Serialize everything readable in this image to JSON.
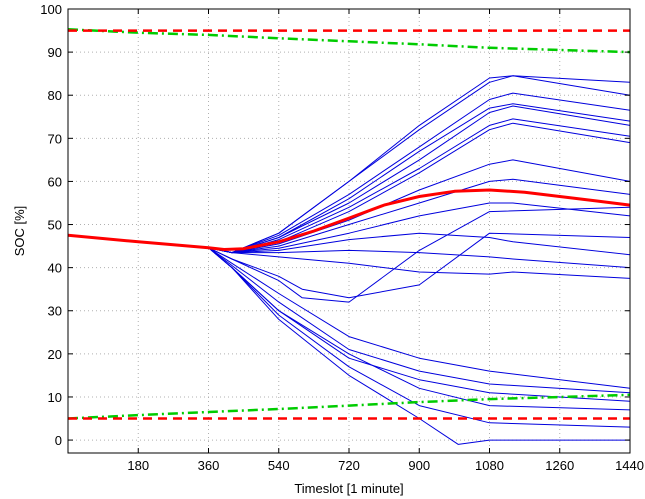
{
  "chart_data": {
    "type": "line",
    "title": "",
    "xlabel": "Timeslot [1 minute]",
    "ylabel": "SOC [%]",
    "xlim": [
      0,
      1440
    ],
    "ylim": [
      -3,
      100
    ],
    "xticks": [
      180,
      360,
      540,
      720,
      900,
      1080,
      1260,
      1440
    ],
    "yticks": [
      0,
      10,
      20,
      30,
      40,
      50,
      60,
      70,
      80,
      90,
      100
    ],
    "grid": true,
    "legend": "none",
    "colors": {
      "mean": "#ff0000",
      "limits": "#ff0000",
      "bounds": "#00cc00",
      "trajectories": "#0000dd"
    },
    "series": [
      {
        "role": "upper-limit",
        "style": "dashed",
        "x": [
          0,
          1440
        ],
        "y": [
          95,
          95
        ]
      },
      {
        "role": "lower-limit",
        "style": "dashed",
        "x": [
          0,
          1440
        ],
        "y": [
          5,
          5
        ]
      },
      {
        "role": "upper-bound",
        "style": "dash-dot",
        "x": [
          0,
          180,
          360,
          540,
          720,
          900,
          1080,
          1260,
          1440
        ],
        "y": [
          95.3,
          94.5,
          94,
          93.2,
          92.5,
          91.8,
          91.0,
          90.5,
          90.0
        ]
      },
      {
        "role": "lower-bound",
        "style": "dash-dot",
        "x": [
          0,
          180,
          360,
          540,
          720,
          900,
          1080,
          1260,
          1440
        ],
        "y": [
          5.0,
          5.8,
          6.5,
          7.2,
          8.0,
          8.8,
          9.5,
          10.0,
          10.5
        ]
      },
      {
        "role": "mean",
        "style": "solid-thick",
        "x": [
          0,
          180,
          360,
          400,
          450,
          540,
          630,
          720,
          810,
          900,
          990,
          1080,
          1170,
          1260,
          1350,
          1440
        ],
        "y": [
          47.5,
          46,
          44.6,
          44.2,
          44.4,
          46,
          48.5,
          51.5,
          54.5,
          56.5,
          57.7,
          58,
          57.5,
          56.5,
          55.5,
          54.5
        ]
      },
      {
        "role": "trajectory",
        "x": [
          0,
          360,
          420,
          540,
          720,
          900,
          1080,
          1140,
          1440
        ],
        "y": [
          47.5,
          44.6,
          43.5,
          48,
          60,
          73,
          84,
          84.5,
          80.0
        ]
      },
      {
        "role": "trajectory",
        "x": [
          0,
          360,
          420,
          540,
          720,
          900,
          1080,
          1140,
          1440
        ],
        "y": [
          47.5,
          44.6,
          43.5,
          48,
          60,
          72,
          83,
          84.5,
          83.0
        ]
      },
      {
        "role": "trajectory",
        "x": [
          0,
          360,
          420,
          540,
          720,
          900,
          1080,
          1140,
          1440
        ],
        "y": [
          47.5,
          44.6,
          43.5,
          47.5,
          57,
          68,
          79,
          80.5,
          76.5
        ]
      },
      {
        "role": "trajectory",
        "x": [
          0,
          360,
          420,
          540,
          720,
          900,
          1080,
          1140,
          1440
        ],
        "y": [
          47.5,
          44.6,
          43.5,
          47,
          56,
          67,
          77,
          78,
          74.0
        ]
      },
      {
        "role": "trajectory",
        "x": [
          0,
          360,
          420,
          540,
          720,
          900,
          1080,
          1140,
          1440
        ],
        "y": [
          47.5,
          44.6,
          43.5,
          47,
          55,
          65,
          76,
          77.5,
          73.0
        ]
      },
      {
        "role": "trajectory",
        "x": [
          0,
          360,
          420,
          540,
          720,
          900,
          1080,
          1140,
          1440
        ],
        "y": [
          47.5,
          44.6,
          43.5,
          46.5,
          54,
          63,
          73,
          74.5,
          70.5
        ]
      },
      {
        "role": "trajectory",
        "x": [
          0,
          360,
          420,
          540,
          720,
          900,
          1080,
          1140,
          1440
        ],
        "y": [
          47.5,
          44.6,
          43.5,
          46,
          53,
          62,
          72,
          73.5,
          69.0
        ]
      },
      {
        "role": "trajectory",
        "x": [
          0,
          360,
          420,
          540,
          720,
          900,
          1080,
          1140,
          1440
        ],
        "y": [
          47.5,
          44.6,
          43.5,
          45.5,
          51,
          58,
          64,
          65,
          60.0
        ]
      },
      {
        "role": "trajectory",
        "x": [
          0,
          360,
          420,
          540,
          720,
          900,
          1080,
          1140,
          1440
        ],
        "y": [
          47.5,
          44.6,
          43.5,
          45,
          50,
          55,
          60,
          60.5,
          57.0
        ]
      },
      {
        "role": "trajectory",
        "x": [
          0,
          360,
          420,
          540,
          720,
          900,
          1080,
          1140,
          1440
        ],
        "y": [
          47.5,
          44.6,
          43.5,
          44.5,
          48,
          52,
          55,
          55,
          52.0
        ]
      },
      {
        "role": "trajectory",
        "x": [
          0,
          360,
          420,
          540,
          720,
          900,
          1080,
          1140,
          1440
        ],
        "y": [
          47.5,
          44.6,
          43.5,
          44,
          46.5,
          48,
          47,
          46,
          43.0
        ]
      },
      {
        "role": "trajectory",
        "x": [
          0,
          360,
          420,
          540,
          720,
          900,
          1080,
          1140,
          1440
        ],
        "y": [
          47.5,
          44.6,
          43.5,
          43.5,
          44,
          43.5,
          42.5,
          42,
          40.0
        ]
      },
      {
        "role": "trajectory",
        "x": [
          0,
          360,
          420,
          540,
          720,
          900,
          1080,
          1140,
          1440
        ],
        "y": [
          47.5,
          44.6,
          43.5,
          42.5,
          41,
          39,
          38.5,
          39,
          37.5
        ]
      },
      {
        "role": "trajectory",
        "x": [
          0,
          360,
          420,
          540,
          600,
          720,
          900,
          1080,
          1440
        ],
        "y": [
          47.5,
          44.6,
          42,
          38,
          35,
          33,
          36,
          48,
          47.0
        ]
      },
      {
        "role": "trajectory",
        "x": [
          0,
          360,
          420,
          540,
          600,
          720,
          900,
          1080,
          1440
        ],
        "y": [
          47.5,
          44.6,
          42,
          37,
          33,
          32,
          44,
          53,
          54.0
        ]
      },
      {
        "role": "trajectory",
        "x": [
          0,
          360,
          420,
          540,
          720,
          900,
          1080,
          1440
        ],
        "y": [
          47.5,
          44.6,
          41,
          34,
          24,
          19,
          16,
          12.0
        ]
      },
      {
        "role": "trajectory",
        "x": [
          0,
          360,
          420,
          540,
          720,
          900,
          1080,
          1440
        ],
        "y": [
          47.5,
          44.6,
          40.5,
          32,
          21,
          16,
          13,
          11.0
        ]
      },
      {
        "role": "trajectory",
        "x": [
          0,
          360,
          420,
          540,
          720,
          900,
          1080,
          1440
        ],
        "y": [
          47.5,
          44.6,
          40,
          30,
          19,
          14,
          11,
          9.0
        ]
      },
      {
        "role": "trajectory",
        "x": [
          0,
          360,
          420,
          540,
          720,
          900,
          1000,
          1080,
          1440
        ],
        "y": [
          47.5,
          44.6,
          40,
          28,
          15,
          5,
          -1,
          0,
          0.0
        ]
      },
      {
        "role": "trajectory",
        "x": [
          0,
          360,
          420,
          540,
          720,
          900,
          1080,
          1440
        ],
        "y": [
          47.5,
          44.6,
          40,
          29,
          17,
          8,
          4,
          3.0
        ]
      },
      {
        "role": "trajectory",
        "x": [
          0,
          360,
          420,
          540,
          720,
          900,
          1080,
          1440
        ],
        "y": [
          47.5,
          44.6,
          40,
          30,
          20,
          12,
          8,
          7.0
        ]
      }
    ]
  }
}
